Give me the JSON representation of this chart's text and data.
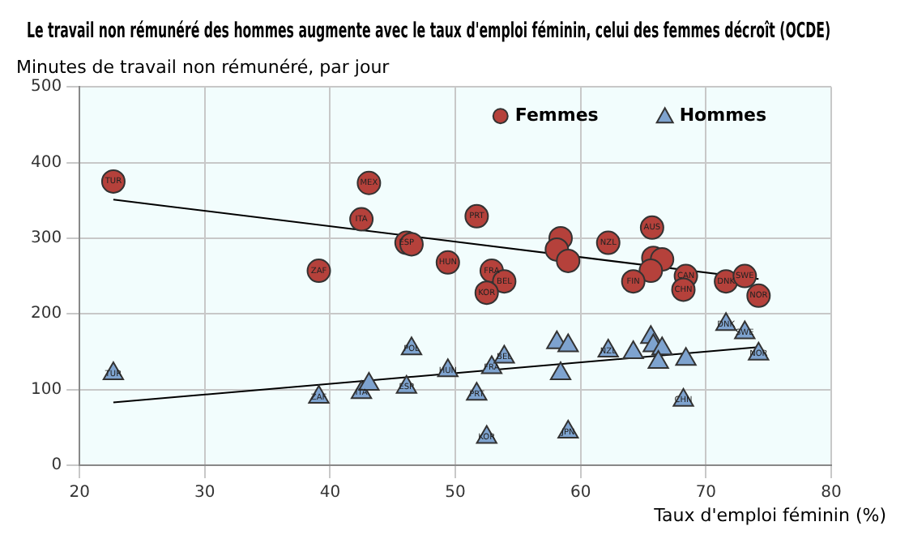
{
  "chart_data": {
    "type": "scatter",
    "title": "Le travail non rémunéré des hommes augmente avec le taux d'emploi féminin, celui des femmes décroît (OCDE)",
    "xlabel": "Taux d'emploi féminin (%)",
    "ylabel": "Minutes de travail non rémunéré, par jour",
    "xlim": [
      20,
      80
    ],
    "xticks": [
      20,
      30,
      40,
      50,
      60,
      70,
      80
    ],
    "ylim": [
      0,
      500
    ],
    "yticks": [
      0,
      100,
      200,
      300,
      400,
      500
    ],
    "grid": true,
    "legend": "top right",
    "series": [
      {
        "name": "Femmes",
        "color": "#b5413b",
        "marker": "circle",
        "x": [
          22.7,
          43.1,
          42.5,
          39.1,
          46.1,
          46.5,
          49.4,
          51.7,
          52.9,
          53.9,
          52.5,
          58.4,
          58.1,
          59,
          62.2,
          65.7,
          65.8,
          66.5,
          65.6,
          64.2,
          68.4,
          68.2,
          71.6,
          73.1,
          74.2
        ],
        "values": [
          375,
          373,
          325,
          257,
          294,
          292,
          268,
          329,
          257,
          243,
          228,
          300,
          285,
          270,
          294,
          314,
          274,
          272,
          257,
          243,
          250,
          232,
          243,
          250,
          224
        ]
      },
      {
        "name": "Hommes",
        "color": "#7ea3cf",
        "marker": "triangle",
        "x": [
          22.7,
          39.1,
          42.5,
          43.1,
          46.5,
          46.1,
          49.4,
          51.7,
          52.5,
          52.9,
          53.9,
          58.1,
          59,
          58.4,
          59,
          62.2,
          64.2,
          65.6,
          65.8,
          66.5,
          66.2,
          68.4,
          68.2,
          71.6,
          73.1,
          74.2
        ],
        "values": [
          121,
          90,
          96,
          107,
          154,
          103,
          125,
          94,
          37,
          129,
          143,
          162,
          158,
          121,
          44,
          151,
          149,
          169,
          158,
          154,
          136,
          140,
          86,
          186,
          175,
          147
        ]
      },
      {
        "type": "line",
        "color": "#000000",
        "marker": "none",
        "x": [
          22.7,
          74.2
        ],
        "values": [
          351,
          246
        ]
      },
      {
        "type": "line",
        "color": "#000000",
        "marker": "none",
        "x": [
          22.7,
          74.2
        ],
        "values": [
          83,
          156
        ]
      }
    ],
    "annotations": [
      {
        "text": "TUR",
        "x": 22.7,
        "y": 375
      },
      {
        "text": "MEX",
        "x": 43.1,
        "y": 373
      },
      {
        "text": "ITA",
        "x": 42.5,
        "y": 325
      },
      {
        "text": "ZAF",
        "x": 39.1,
        "y": 257
      },
      {
        "text": "ESP",
        "x": 46.1,
        "y": 294
      },
      {
        "text": "HUN",
        "x": 49.4,
        "y": 268
      },
      {
        "text": "PRT",
        "x": 51.7,
        "y": 329
      },
      {
        "text": "FRA",
        "x": 52.9,
        "y": 257
      },
      {
        "text": "BEL",
        "x": 53.9,
        "y": 243
      },
      {
        "text": "KOR",
        "x": 52.5,
        "y": 228
      },
      {
        "text": "NZL",
        "x": 62.2,
        "y": 294
      },
      {
        "text": "AUS",
        "x": 65.7,
        "y": 314
      },
      {
        "text": "FIN",
        "x": 64.2,
        "y": 243
      },
      {
        "text": "CAN",
        "x": 68.4,
        "y": 250
      },
      {
        "text": "CHN",
        "x": 68.2,
        "y": 232
      },
      {
        "text": "DNK",
        "x": 71.6,
        "y": 243
      },
      {
        "text": "SWE",
        "x": 73.1,
        "y": 250
      },
      {
        "text": "NOR",
        "x": 74.2,
        "y": 224
      },
      {
        "text": "TUR",
        "x": 22.7,
        "y": 121
      },
      {
        "text": "ZAF",
        "x": 39.1,
        "y": 90
      },
      {
        "text": "ITA",
        "x": 42.5,
        "y": 96
      },
      {
        "text": "POL",
        "x": 46.5,
        "y": 154
      },
      {
        "text": "ESP",
        "x": 46.1,
        "y": 103
      },
      {
        "text": "HUN",
        "x": 49.4,
        "y": 125
      },
      {
        "text": "PRT",
        "x": 51.7,
        "y": 94
      },
      {
        "text": "KOR",
        "x": 52.5,
        "y": 37
      },
      {
        "text": "FRA",
        "x": 52.9,
        "y": 129
      },
      {
        "text": "BEL",
        "x": 53.9,
        "y": 143
      },
      {
        "text": "JPN",
        "x": 59,
        "y": 44
      },
      {
        "text": "NZL",
        "x": 62.2,
        "y": 151
      },
      {
        "text": "CHN",
        "x": 68.2,
        "y": 86
      },
      {
        "text": "DNK",
        "x": 71.6,
        "y": 186
      },
      {
        "text": "SWE",
        "x": 73.1,
        "y": 175
      },
      {
        "text": "NOR",
        "x": 74.2,
        "y": 147
      }
    ]
  }
}
